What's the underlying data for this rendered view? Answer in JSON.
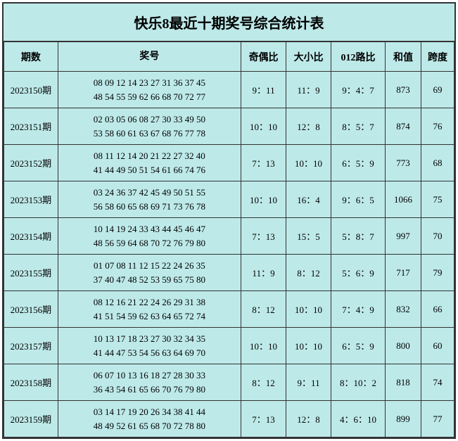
{
  "title": "快乐8最近十期奖号综合统计表",
  "background_color": "#bee9e9",
  "border_color": "#333333",
  "text_color": "#000000",
  "title_fontsize": 20,
  "header_fontsize": 14,
  "cell_fontsize": 13,
  "columns": {
    "period": "期数",
    "numbers": "奖号",
    "odd_even": "奇偶比",
    "big_small": "大小比",
    "route_012": "012路比",
    "sum": "和值",
    "span": "跨度"
  },
  "rows": [
    {
      "period": "2023150期",
      "numbers_line1": "08 09 12 14 23 27 31 36 37 45",
      "numbers_line2": "48 54 55 59 62 66 68 70 72 77",
      "odd_even": "9：11",
      "big_small": "11：9",
      "route_012": "9：4：7",
      "sum": "873",
      "span": "69"
    },
    {
      "period": "2023151期",
      "numbers_line1": "02 03 05 06 08 27 30 33 49 50",
      "numbers_line2": "53 58 60 61 63 67 68 76 77 78",
      "odd_even": "10：10",
      "big_small": "12：8",
      "route_012": "8：5：7",
      "sum": "874",
      "span": "76"
    },
    {
      "period": "2023152期",
      "numbers_line1": "08 11 12 14 20 21 22 27 32 40",
      "numbers_line2": "41 44 49 50 51 54 61 66 74 76",
      "odd_even": "7：13",
      "big_small": "10：10",
      "route_012": "6：5：9",
      "sum": "773",
      "span": "68"
    },
    {
      "period": "2023153期",
      "numbers_line1": "03 24 36 37 42 45 49 50 51 55",
      "numbers_line2": "56 58 60 65 68 69 71 73 76 78",
      "odd_even": "10：10",
      "big_small": "16：4",
      "route_012": "9：6：5",
      "sum": "1066",
      "span": "75"
    },
    {
      "period": "2023154期",
      "numbers_line1": "10 14 19 24 33 43 44 45 46 47",
      "numbers_line2": "48 56 59 64 68 70 72 76 79 80",
      "odd_even": "7：13",
      "big_small": "15：5",
      "route_012": "5：8：7",
      "sum": "997",
      "span": "70"
    },
    {
      "period": "2023155期",
      "numbers_line1": "01 07 08 11 12 15 22 24 26 35",
      "numbers_line2": "37 40 47 48 52 53 59 65 75 80",
      "odd_even": "11：9",
      "big_small": "8：12",
      "route_012": "5：6：9",
      "sum": "717",
      "span": "79"
    },
    {
      "period": "2023156期",
      "numbers_line1": "08 12 16 21 22 24 26 29 31 38",
      "numbers_line2": "41 51 54 59 62 63 64 65 72 74",
      "odd_even": "8：12",
      "big_small": "10：10",
      "route_012": "7：4：9",
      "sum": "832",
      "span": "66"
    },
    {
      "period": "2023157期",
      "numbers_line1": "10 13 17 18 23 27 30 32 34 35",
      "numbers_line2": "41 44 47 53 54 56 63 64 69 70",
      "odd_even": "10：10",
      "big_small": "10：10",
      "route_012": "6：5：9",
      "sum": "800",
      "span": "60"
    },
    {
      "period": "2023158期",
      "numbers_line1": "06 07 10 13 16 18 27 28 30 33",
      "numbers_line2": "36 43 54 61 65 66 70 76 79 80",
      "odd_even": "8：12",
      "big_small": "9：11",
      "route_012": "8：10：2",
      "sum": "818",
      "span": "74"
    },
    {
      "period": "2023159期",
      "numbers_line1": "03 14 17 19 20 26 34 38 41 44",
      "numbers_line2": "48 49 52 61 65 68 70 72 78 80",
      "odd_even": "7：13",
      "big_small": "12：8",
      "route_012": "4：6：10",
      "sum": "899",
      "span": "77"
    }
  ]
}
